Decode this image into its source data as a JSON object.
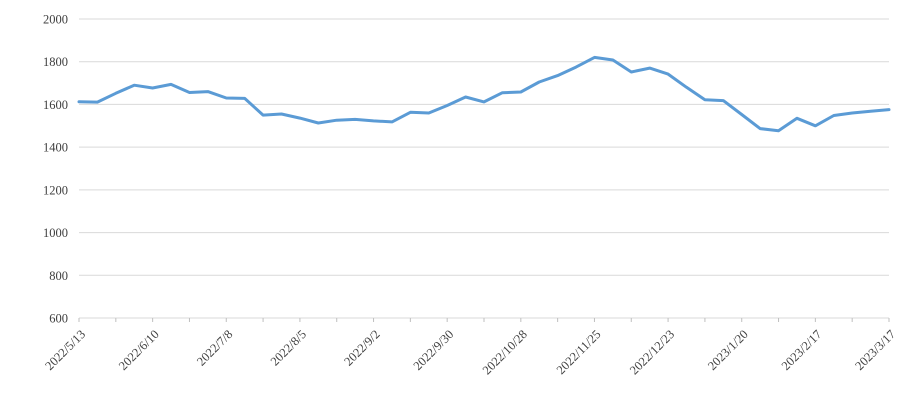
{
  "chart_data": {
    "type": "line",
    "title": "",
    "xlabel": "",
    "ylabel": "",
    "x": [
      "2022/5/13",
      "2022/5/20",
      "2022/5/27",
      "2022/6/3",
      "2022/6/10",
      "2022/6/17",
      "2022/6/24",
      "2022/7/1",
      "2022/7/8",
      "2022/7/15",
      "2022/7/22",
      "2022/7/29",
      "2022/8/5",
      "2022/8/12",
      "2022/8/19",
      "2022/8/26",
      "2022/9/2",
      "2022/9/9",
      "2022/9/16",
      "2022/9/23",
      "2022/9/30",
      "2022/10/7",
      "2022/10/14",
      "2022/10/21",
      "2022/10/28",
      "2022/11/4",
      "2022/11/11",
      "2022/11/18",
      "2022/11/25",
      "2022/12/2",
      "2022/12/9",
      "2022/12/16",
      "2022/12/23",
      "2022/12/30",
      "2023/1/6",
      "2023/1/13",
      "2023/1/20",
      "2023/1/27",
      "2023/2/3",
      "2023/2/10",
      "2023/2/17",
      "2023/2/24",
      "2023/3/3",
      "2023/3/10",
      "2023/3/17"
    ],
    "series": [
      {
        "name": "value",
        "values": [
          1613,
          1611,
          1652,
          1690,
          1677,
          1694,
          1656,
          1660,
          1630,
          1628,
          1550,
          1555,
          1536,
          1513,
          1526,
          1530,
          1523,
          1518,
          1563,
          1560,
          1595,
          1635,
          1612,
          1655,
          1658,
          1705,
          1735,
          1775,
          1820,
          1808,
          1752,
          1770,
          1742,
          1680,
          1622,
          1618,
          1553,
          1487,
          1477,
          1535,
          1500,
          1548,
          1560,
          1568,
          1576
        ]
      }
    ],
    "x_tick_labels": [
      "2022/5/13",
      "2022/6/10",
      "2022/7/8",
      "2022/8/5",
      "2022/9/2",
      "2022/9/30",
      "2022/10/28",
      "2022/11/25",
      "2022/12/23",
      "2023/1/20",
      "2023/2/17",
      "2023/3/17"
    ],
    "x_label_every_n_points": 4,
    "x_minor_tick_every_n_points": 2,
    "x_label_rotation_deg": -45,
    "y_ticks": [
      "600",
      "800",
      "1000",
      "1200",
      "1400",
      "1600",
      "1800",
      "2000"
    ],
    "ylim": [
      600,
      2000
    ],
    "grid": true,
    "legend_position": "none",
    "line_color": "#5b9bd5",
    "gridline_color": "#d9d9d9",
    "tick_color": "#bfbfbf",
    "label_color": "#3f3f3f"
  }
}
